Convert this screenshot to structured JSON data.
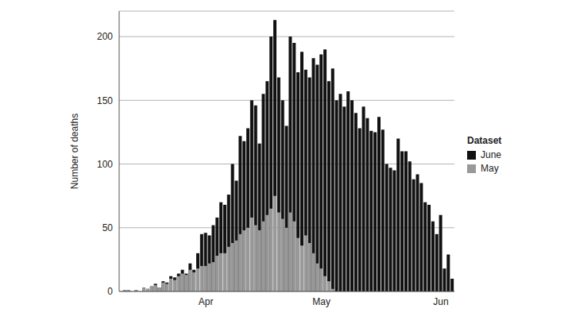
{
  "chart_data": {
    "type": "bar",
    "y_label": "Number of deaths",
    "legend_title": "Dataset",
    "legend": "right",
    "grid": true,
    "ylim": [
      0,
      220
    ],
    "yticks": [
      0,
      50,
      100,
      150,
      200
    ],
    "categories": [
      null,
      null,
      null,
      null,
      null,
      null,
      null,
      null,
      null,
      null,
      null,
      null,
      null,
      null,
      null,
      null,
      null,
      null,
      null,
      null,
      null,
      null,
      "Apr",
      null,
      null,
      null,
      null,
      null,
      null,
      null,
      null,
      null,
      null,
      null,
      null,
      null,
      null,
      null,
      null,
      null,
      null,
      null,
      null,
      null,
      null,
      null,
      null,
      null,
      null,
      null,
      null,
      null,
      "May",
      null,
      null,
      null,
      null,
      null,
      null,
      null,
      null,
      null,
      null,
      null,
      null,
      null,
      null,
      null,
      null,
      null,
      null,
      null,
      null,
      null,
      null,
      null,
      null,
      null,
      null,
      null,
      null,
      null,
      null,
      "Jun",
      null,
      null,
      null
    ],
    "series": [
      {
        "name": "June",
        "color": "#111111",
        "values": [
          0,
          1,
          1,
          0,
          1,
          0,
          3,
          2,
          4,
          6,
          3,
          8,
          7,
          12,
          11,
          14,
          17,
          14,
          22,
          17,
          30,
          45,
          46,
          44,
          52,
          58,
          70,
          68,
          76,
          100,
          87,
          122,
          118,
          128,
          150,
          146,
          116,
          155,
          165,
          200,
          213,
          168,
          150,
          130,
          200,
          195,
          172,
          188,
          174,
          168,
          183,
          178,
          186,
          190,
          165,
          175,
          150,
          155,
          145,
          157,
          150,
          140,
          128,
          145,
          136,
          126,
          125,
          137,
          127,
          100,
          97,
          95,
          120,
          110,
          110,
          102,
          88,
          92,
          85,
          70,
          68,
          55,
          45,
          60,
          18,
          29,
          10
        ]
      },
      {
        "name": "May",
        "color": "#999999",
        "values": [
          0,
          1,
          1,
          0,
          1,
          0,
          3,
          2,
          4,
          5,
          3,
          7,
          6,
          10,
          9,
          12,
          14,
          13,
          17,
          15,
          18,
          20,
          20,
          22,
          23,
          28,
          30,
          30,
          35,
          38,
          40,
          45,
          48,
          50,
          58,
          52,
          48,
          55,
          60,
          65,
          75,
          62,
          57,
          50,
          62,
          55,
          42,
          36,
          44,
          38,
          30,
          22,
          18,
          12,
          8,
          2,
          null,
          null,
          null,
          null,
          null,
          null,
          null,
          null,
          null,
          null,
          null,
          null,
          null,
          null,
          null,
          null,
          null,
          null,
          null,
          null,
          null,
          null,
          null,
          null,
          null,
          null,
          null,
          null,
          null,
          null,
          null
        ]
      }
    ]
  }
}
